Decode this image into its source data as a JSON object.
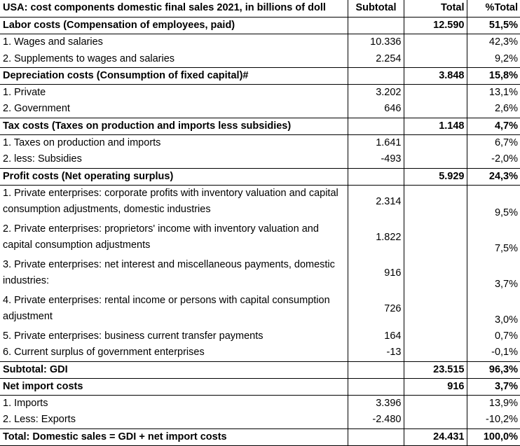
{
  "header": {
    "title": "USA: cost components domestic final sales 2021, in billions of doll",
    "col_subtotal": "Subtotal",
    "col_total": "Total",
    "col_pct": "%Total"
  },
  "rows": [
    {
      "label": "Labor costs (Compensation of employees, paid)",
      "subtotal": "",
      "total": "12.590",
      "pct": "51,5%",
      "type": "section"
    },
    {
      "label": "1. Wages and salaries",
      "subtotal": "10.336",
      "total": "",
      "pct": "42,3%",
      "type": "item"
    },
    {
      "label": "2. Supplements to wages and salaries",
      "subtotal": "2.254",
      "total": "",
      "pct": "9,2%",
      "type": "item"
    },
    {
      "label": "Depreciation costs (Consumption of fixed capital)#",
      "subtotal": "",
      "total": "3.848",
      "pct": "15,8%",
      "type": "section"
    },
    {
      "label": "1. Private",
      "subtotal": "3.202",
      "total": "",
      "pct": "13,1%",
      "type": "item"
    },
    {
      "label": "2. Government",
      "subtotal": "646",
      "total": "",
      "pct": "2,6%",
      "type": "item"
    },
    {
      "label": "Tax costs (Taxes on production and imports less subsidies)",
      "subtotal": "",
      "total": "1.148",
      "pct": "4,7%",
      "type": "section"
    },
    {
      "label": "1. Taxes on production and imports",
      "subtotal": "1.641",
      "total": "",
      "pct": "6,7%",
      "type": "item"
    },
    {
      "label": "2. less: Subsidies",
      "subtotal": "-493",
      "total": "",
      "pct": "-2,0%",
      "type": "item"
    },
    {
      "label": "Profit costs (Net operating surplus)",
      "subtotal": "",
      "total": "5.929",
      "pct": "24,3%",
      "type": "section"
    },
    {
      "label": "1. Private enterprises: corporate profits with inventory valuation and capital consumption adjustments, domestic industries",
      "subtotal": "2.314",
      "total": "",
      "pct": "9,5%",
      "type": "item2"
    },
    {
      "label": "2. Private enterprises: proprietors' income with inventory valuation and capital consumption adjustments",
      "subtotal": "1.822",
      "total": "",
      "pct": "7,5%",
      "type": "item2"
    },
    {
      "label": "3. Private enterprises: net interest and miscellaneous payments, domestic industries:",
      "subtotal": "916",
      "total": "",
      "pct": "3,7%",
      "type": "item2"
    },
    {
      "label": "4. Private enterprises: rental income or persons with capital consumption adjustment",
      "subtotal": "726",
      "total": "",
      "pct": "3,0%",
      "type": "item2"
    },
    {
      "label": "5. Private enterprises: business current transfer payments",
      "subtotal": "164",
      "total": "",
      "pct": "0,7%",
      "type": "item"
    },
    {
      "label": "6. Current surplus of government enterprises",
      "subtotal": "-13",
      "total": "",
      "pct": "-0,1%",
      "type": "item"
    },
    {
      "label": "Subtotal: GDI",
      "subtotal": "",
      "total": "23.515",
      "pct": "96,3%",
      "type": "subtotal"
    },
    {
      "label": "Net import costs",
      "subtotal": "",
      "total": "916",
      "pct": "3,7%",
      "type": "section"
    },
    {
      "label": "1. Imports",
      "subtotal": "3.396",
      "total": "",
      "pct": "13,9%",
      "type": "item"
    },
    {
      "label": "2. Less: Exports",
      "subtotal": "-2.480",
      "total": "",
      "pct": "-10,2%",
      "type": "item"
    },
    {
      "label": "Total: Domestic sales = GDI + net import costs",
      "subtotal": "",
      "total": "24.431",
      "pct": "100,0%",
      "type": "total"
    }
  ]
}
